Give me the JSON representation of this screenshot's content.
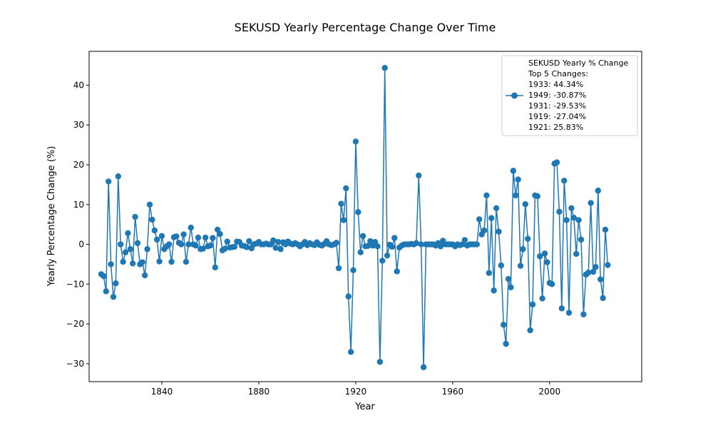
{
  "chart_data": {
    "type": "line",
    "title": "SEKUSD Yearly Percentage Change Over Time",
    "xlabel": "Year",
    "ylabel": "Yearly Percentage Change (%)",
    "xlim": [
      1810,
      2038
    ],
    "ylim": [
      -34.5,
      48.5
    ],
    "xticks": [
      1840,
      1880,
      1920,
      1960,
      2000
    ],
    "yticks": [
      -30,
      -20,
      -10,
      0,
      10,
      20,
      30,
      40
    ],
    "grid": false,
    "legend_position": "top-right",
    "color": "#1f77b4",
    "legend_lines": [
      "SEKUSD Yearly % Change",
      "Top 5 Changes:",
      "1933: 44.34%",
      "1949: -30.87%",
      "1931: -29.53%",
      "1919: -27.04%",
      "1921: 25.83%"
    ],
    "series": [
      {
        "x": [
          1815,
          1816,
          1817,
          1818,
          1819,
          1820,
          1821,
          1822,
          1823,
          1824,
          1825,
          1826,
          1827,
          1828,
          1829,
          1830,
          1831,
          1832,
          1833,
          1834,
          1835,
          1836,
          1837,
          1838,
          1839,
          1840,
          1841,
          1842,
          1843,
          1844,
          1845,
          1846,
          1847,
          1848,
          1849,
          1850,
          1851,
          1852,
          1853,
          1854,
          1855,
          1856,
          1857,
          1858,
          1859,
          1860,
          1861,
          1862,
          1863,
          1864,
          1865,
          1866,
          1867,
          1868,
          1869,
          1870,
          1871,
          1872,
          1873,
          1874,
          1875,
          1876,
          1877,
          1878,
          1879,
          1880,
          1881,
          1882,
          1883,
          1884,
          1885,
          1886,
          1887,
          1888,
          1889,
          1890,
          1891,
          1892,
          1893,
          1894,
          1895,
          1896,
          1897,
          1898,
          1899,
          1900,
          1901,
          1902,
          1903,
          1904,
          1905,
          1906,
          1907,
          1908,
          1909,
          1910,
          1911,
          1912,
          1913,
          1914,
          1915,
          1916,
          1917,
          1918,
          1919,
          1920,
          1921,
          1922,
          1923,
          1924,
          1925,
          1926,
          1927,
          1928,
          1929,
          1930,
          1931,
          1932,
          1933,
          1934,
          1935,
          1936,
          1937,
          1938,
          1939,
          1940,
          1941,
          1942,
          1943,
          1944,
          1945,
          1946,
          1947,
          1948,
          1949,
          1950,
          1951,
          1952,
          1953,
          1954,
          1955,
          1956,
          1957,
          1958,
          1959,
          1960,
          1961,
          1962,
          1963,
          1964,
          1965,
          1966,
          1967,
          1968,
          1969,
          1970,
          1971,
          1972,
          1973,
          1974,
          1975,
          1976,
          1977,
          1978,
          1979,
          1980,
          1981,
          1982,
          1983,
          1984,
          1985,
          1986,
          1987,
          1988,
          1989,
          1990,
          1991,
          1992,
          1993,
          1994,
          1995,
          1996,
          1997,
          1998,
          1999,
          2000,
          2001,
          2002,
          2003,
          2004,
          2005,
          2006,
          2007,
          2008,
          2009,
          2010,
          2011,
          2012,
          2013,
          2014,
          2015,
          2016,
          2017,
          2018,
          2019,
          2020,
          2021,
          2022,
          2023,
          2024
        ],
        "y": [
          -7.5,
          -8.0,
          -11.8,
          15.8,
          -5.0,
          -13.2,
          -9.8,
          17.1,
          0.0,
          -4.4,
          -2.0,
          2.8,
          -1.2,
          -4.8,
          6.9,
          0.3,
          -5.0,
          -4.5,
          -7.8,
          -1.2,
          10.0,
          6.2,
          3.5,
          1.2,
          -4.3,
          2.1,
          -1.2,
          -0.5,
          0.0,
          -4.4,
          1.8,
          2.0,
          0.4,
          0.0,
          2.5,
          -4.4,
          0.0,
          4.2,
          0.0,
          -0.3,
          1.7,
          -1.2,
          -1.1,
          1.7,
          -0.5,
          -0.3,
          1.6,
          -5.8,
          3.7,
          2.6,
          -1.5,
          -1.1,
          0.7,
          -0.8,
          -0.7,
          -0.6,
          0.7,
          0.6,
          -0.3,
          -0.4,
          -0.7,
          0.8,
          -1.0,
          0.0,
          0.2,
          0.6,
          0.0,
          0.0,
          0.2,
          0.0,
          0.0,
          1.0,
          -0.9,
          0.6,
          -1.2,
          0.5,
          0.0,
          0.7,
          0.2,
          0.0,
          0.3,
          0.0,
          -0.5,
          0.0,
          0.6,
          -0.2,
          0.3,
          0.0,
          -0.2,
          0.5,
          -0.1,
          -0.3,
          0.1,
          0.8,
          0.0,
          -0.2,
          0.0,
          0.4,
          -6.0,
          10.2,
          6.1,
          14.1,
          -13.1,
          -27.04,
          -6.5,
          25.83,
          8.1,
          -2.0,
          2.1,
          -0.5,
          -0.4,
          0.8,
          -0.3,
          0.6,
          -0.5,
          -29.53,
          -4.1,
          44.34,
          -2.8,
          -0.1,
          -0.6,
          1.6,
          -6.8,
          -0.8,
          -0.3,
          0.0,
          0.0,
          0.0,
          0.1,
          0.0,
          0.3,
          17.3,
          0.0,
          -30.87,
          0.0,
          0.0,
          0.0,
          0.0,
          -0.3,
          0.3,
          -0.5,
          0.9,
          0.0,
          0.0,
          0.0,
          0.0,
          -0.5,
          0.0,
          -0.2,
          0.0,
          1.1,
          -0.3,
          0.0,
          0.0,
          0.0,
          0.0,
          6.3,
          2.5,
          3.5,
          12.3,
          -7.2,
          6.6,
          -11.6,
          9.1,
          3.2,
          -5.3,
          -20.2,
          -25.0,
          -8.7,
          -10.8,
          18.5,
          12.3,
          16.3,
          -5.4,
          -1.2,
          10.1,
          1.4,
          -21.6,
          -15.1,
          12.3,
          12.1,
          -3.0,
          -13.6,
          -2.3,
          -4.5,
          -9.7,
          -10.0,
          20.3,
          20.6,
          8.2,
          -16.1,
          16.0,
          6.1,
          -17.2,
          9.1,
          6.7,
          -2.4,
          6.1,
          1.2,
          -17.6,
          -7.6,
          -7.1,
          10.4,
          -6.9,
          -5.7,
          13.5,
          -8.8,
          -13.5,
          3.7,
          -5.2
        ]
      }
    ]
  }
}
